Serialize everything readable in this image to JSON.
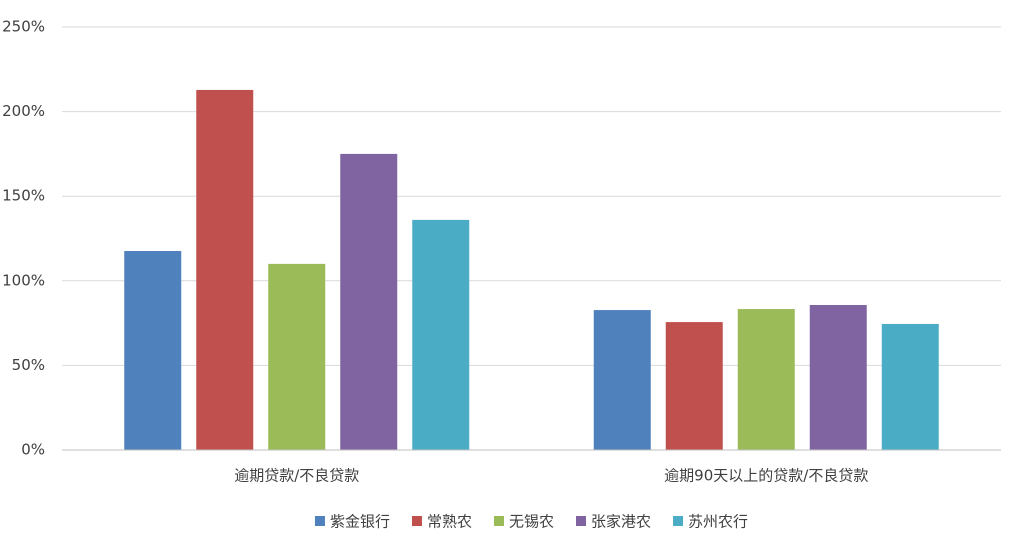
{
  "chart_data": {
    "type": "bar",
    "categories": [
      "逾期贷款/不良贷款",
      "逾期90天以上的贷款/不良贷款"
    ],
    "series": [
      {
        "name": "紫金银行",
        "color": "#4f81bd",
        "values": [
          117.6,
          82.7
        ]
      },
      {
        "name": "常熟农",
        "color": "#c0504d",
        "values": [
          212.8,
          75.6
        ]
      },
      {
        "name": "无锡农",
        "color": "#9bbb59",
        "values": [
          110,
          83.3
        ]
      },
      {
        "name": "张家港农",
        "color": "#8064a2",
        "values": [
          175,
          85.7
        ]
      },
      {
        "name": "苏州农行",
        "color": "#4bacc6",
        "values": [
          136,
          74.5
        ]
      }
    ],
    "ylim": [
      0,
      250
    ],
    "yticks": [
      {
        "value": 0,
        "label": "0%"
      },
      {
        "value": 50,
        "label": "50%"
      },
      {
        "value": 100,
        "label": "100%"
      },
      {
        "value": 150,
        "label": "150%"
      },
      {
        "value": 200,
        "label": "200%"
      },
      {
        "value": 250,
        "label": "250%"
      }
    ],
    "grid": true,
    "legend": "bottom"
  }
}
